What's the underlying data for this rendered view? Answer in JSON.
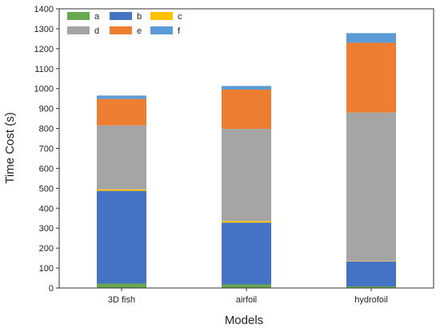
{
  "chart_data": {
    "type": "bar",
    "stacked": true,
    "categories": [
      "3D fish",
      "airfoil",
      "hydrofoil"
    ],
    "series": [
      {
        "name": "a",
        "color": "#6aa84f",
        "values": [
          22,
          18,
          8
        ]
      },
      {
        "name": "b",
        "color": "#4472c4",
        "values": [
          465,
          310,
          125
        ]
      },
      {
        "name": "c",
        "color": "#ffc000",
        "values": [
          8,
          8,
          2
        ]
      },
      {
        "name": "d",
        "color": "#a5a5a5",
        "values": [
          320,
          462,
          745
        ]
      },
      {
        "name": "e",
        "color": "#ed7d31",
        "values": [
          133,
          197,
          350
        ]
      },
      {
        "name": "f",
        "color": "#5b9bd5",
        "values": [
          17,
          18,
          48
        ]
      }
    ],
    "xlabel": "Models",
    "ylabel": "Time Cost (s)",
    "ylim": [
      0,
      1400
    ],
    "yticks": [
      0,
      100,
      200,
      300,
      400,
      500,
      600,
      700,
      800,
      900,
      1000,
      1100,
      1200,
      1300,
      1400
    ],
    "legend": "top-left",
    "grid": false
  }
}
